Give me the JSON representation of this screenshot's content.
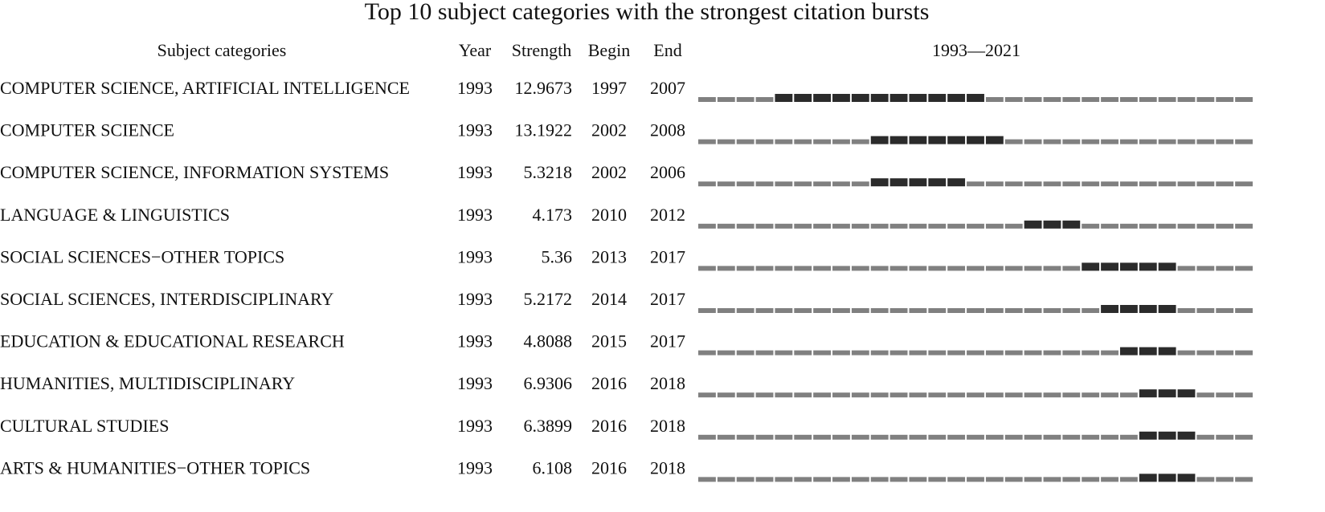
{
  "chart_data": {
    "type": "burst",
    "title": "Top 10 subject categories with the strongest citation bursts",
    "columns": [
      "Subject categories",
      "Year",
      "Strength",
      "Begin",
      "End"
    ],
    "range_label": "1993—2021",
    "xlim": [
      1993,
      2021
    ],
    "burst_color": "#2b2b2b",
    "base_color": "#808080",
    "rows": [
      {
        "name": "COMPUTER SCIENCE, ARTIFICIAL INTELLIGENCE",
        "year": 1993,
        "strength": 12.9673,
        "begin": 1997,
        "end": 2007
      },
      {
        "name": "COMPUTER SCIENCE",
        "year": 1993,
        "strength": 13.1922,
        "begin": 2002,
        "end": 2008
      },
      {
        "name": "COMPUTER SCIENCE, INFORMATION SYSTEMS",
        "year": 1993,
        "strength": 5.3218,
        "begin": 2002,
        "end": 2006
      },
      {
        "name": "LANGUAGE & LINGUISTICS",
        "year": 1993,
        "strength": 4.173,
        "begin": 2010,
        "end": 2012
      },
      {
        "name": "SOCIAL SCIENCES−OTHER TOPICS",
        "year": 1993,
        "strength": 5.36,
        "begin": 2013,
        "end": 2017
      },
      {
        "name": "SOCIAL SCIENCES, INTERDISCIPLINARY",
        "year": 1993,
        "strength": 5.2172,
        "begin": 2014,
        "end": 2017
      },
      {
        "name": "EDUCATION & EDUCATIONAL RESEARCH",
        "year": 1993,
        "strength": 4.8088,
        "begin": 2015,
        "end": 2017
      },
      {
        "name": "HUMANITIES, MULTIDISCIPLINARY",
        "year": 1993,
        "strength": 6.9306,
        "begin": 2016,
        "end": 2018
      },
      {
        "name": "CULTURAL STUDIES",
        "year": 1993,
        "strength": 6.3899,
        "begin": 2016,
        "end": 2018
      },
      {
        "name": "ARTS & HUMANITIES−OTHER TOPICS",
        "year": 1993,
        "strength": 6.108,
        "begin": 2016,
        "end": 2018
      }
    ]
  }
}
